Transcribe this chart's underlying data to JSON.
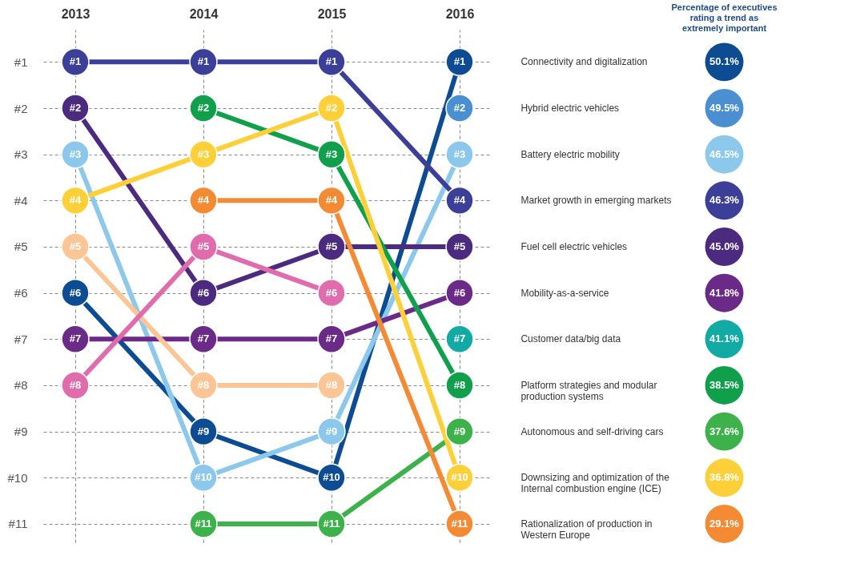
{
  "chart_data": {
    "type": "line",
    "categories": [
      "2013",
      "2014",
      "2015",
      "2016"
    ],
    "series": [
      {
        "name": "Connectivity and digitalization",
        "color": "#0d4c92",
        "values": [
          6,
          9,
          10,
          1
        ],
        "value_labels": [
          "#6",
          "#9",
          "#10",
          "#1"
        ]
      },
      {
        "name": "Hybrid electric vehicles",
        "color": "#4a8fd1",
        "values": [
          null,
          null,
          null,
          2
        ],
        "value_labels": [
          null,
          null,
          null,
          "#2"
        ]
      },
      {
        "name": "Battery electric mobility",
        "color": "#8cc8ec",
        "values": [
          3,
          10,
          9,
          3
        ],
        "value_labels": [
          "#3",
          "#10",
          "#9",
          "#3"
        ]
      },
      {
        "name": "Market growth in emerging markets",
        "color": "#3b3f98",
        "values": [
          1,
          1,
          1,
          4
        ],
        "value_labels": [
          "#1",
          "#1",
          "#1",
          "#4"
        ]
      },
      {
        "name": "Fuel cell electric vehicles",
        "color": "#4b2a7f",
        "values": [
          2,
          6,
          5,
          5
        ],
        "value_labels": [
          "#2",
          "#6",
          "#5",
          "#5"
        ]
      },
      {
        "name": "Mobility-as-a-service",
        "color": "#6b2a87",
        "values": [
          7,
          7,
          7,
          6
        ],
        "value_labels": [
          "#7",
          "#7",
          "#7",
          "#6"
        ]
      },
      {
        "name": "Customer data/big data",
        "color": "#12aaa5",
        "values": [
          null,
          null,
          null,
          7
        ],
        "value_labels": [
          null,
          null,
          null,
          "#7"
        ]
      },
      {
        "name": "Platform strategies and modular production systems",
        "color": "#10a04c",
        "values": [
          null,
          2,
          3,
          8
        ],
        "value_labels": [
          null,
          "#2",
          "#3",
          "#8"
        ]
      },
      {
        "name": "Autonomous and self-driving cars",
        "color": "#3db24a",
        "values": [
          null,
          11,
          11,
          9
        ],
        "value_labels": [
          null,
          "#11",
          "#11",
          "#9"
        ]
      },
      {
        "name": "Downsizing and optimization of the Internal combustion engine (ICE)",
        "color": "#fdd03a",
        "values": [
          4,
          3,
          2,
          10
        ],
        "value_labels": [
          "#4",
          "#3",
          "#2",
          "#10"
        ]
      },
      {
        "name": "Rationalization of production in Western Europe",
        "color": "#f58a34",
        "values": [
          null,
          4,
          4,
          11
        ],
        "value_labels": [
          null,
          "#4",
          "#4",
          "#11"
        ]
      },
      {
        "color": "#fcc595",
        "values": [
          5,
          8,
          8,
          null
        ],
        "value_labels": [
          "#5",
          "#8",
          "#8",
          null
        ]
      },
      {
        "color": "#e06bad",
        "values": [
          8,
          5,
          6,
          null
        ],
        "value_labels": [
          "#8",
          "#5",
          "#6",
          null
        ]
      }
    ],
    "ylim": [
      11.4,
      0.3
    ],
    "yticks": [
      {
        "value": 1,
        "label": "#1"
      },
      {
        "value": 2,
        "label": "#2"
      },
      {
        "value": 3,
        "label": "#3"
      },
      {
        "value": 4,
        "label": "#4"
      },
      {
        "value": 5,
        "label": "#5"
      },
      {
        "value": 6,
        "label": "#6"
      },
      {
        "value": 7,
        "label": "#7"
      },
      {
        "value": 8,
        "label": "#8"
      },
      {
        "value": 9,
        "label": "#9"
      },
      {
        "value": 10,
        "label": "#10"
      },
      {
        "value": 11,
        "label": "#11"
      }
    ],
    "grid": true,
    "marker": "circle",
    "line_style": "solid",
    "legend": "right",
    "legend_title": "Percentage of executives rating a trend as extremely important",
    "annotations": [
      "50.1%",
      "49.5%",
      "46.5%",
      "46.3%",
      "45.0%",
      "41.8%",
      "41.1%",
      "38.5%",
      "37.6%",
      "36.8%",
      "29.1%"
    ]
  }
}
